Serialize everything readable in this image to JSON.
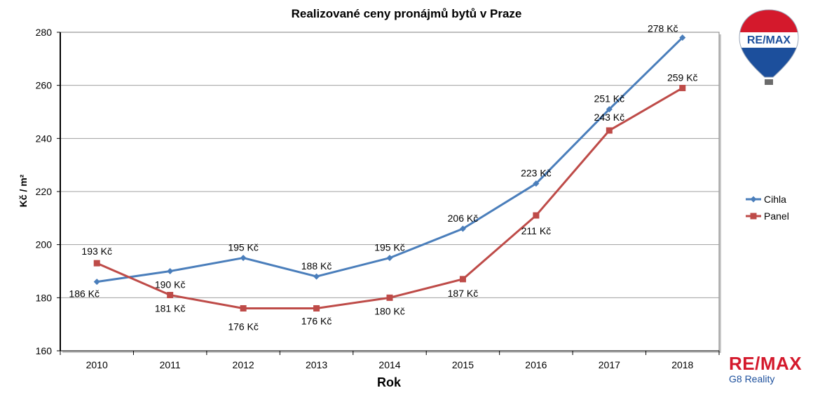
{
  "chart_data": {
    "type": "line",
    "title": "Realizované ceny pronájmů bytů v Praze",
    "xlabel": "Rok",
    "ylabel": "Kč / m²",
    "ylim": [
      160,
      280
    ],
    "yticks": [
      "160",
      "180",
      "200",
      "220",
      "240",
      "260",
      "280"
    ],
    "categories": [
      "2010",
      "2011",
      "2012",
      "2013",
      "2014",
      "2015",
      "2016",
      "2017",
      "2018"
    ],
    "grid": true,
    "legend_position": "right",
    "series": [
      {
        "name": "Cihla",
        "color": "#4a7ebb",
        "marker": "diamond",
        "values": [
          186,
          190,
          195,
          188,
          195,
          206,
          223,
          251,
          278
        ],
        "labels": [
          "186 Kč",
          "190 Kč",
          "195 Kč",
          "188 Kč",
          "195 Kč",
          "206 Kč",
          "223 Kč",
          "251 Kč",
          "278 Kč"
        ]
      },
      {
        "name": "Panel",
        "color": "#be4b48",
        "marker": "square",
        "values": [
          193,
          181,
          176,
          176,
          180,
          187,
          211,
          243,
          259
        ],
        "labels": [
          "193 Kč",
          "181 Kč",
          "176 Kč",
          "176 Kč",
          "180 Kč",
          "187 Kč",
          "211 Kč",
          "243 Kč",
          "259 Kč"
        ]
      }
    ]
  },
  "branding": {
    "balloon_logo_text": "RE/MAX",
    "name": "RE/MAX",
    "subtitle": "G8 Reality",
    "brand_red": "#d4192c",
    "brand_blue": "#1c4f9c"
  }
}
